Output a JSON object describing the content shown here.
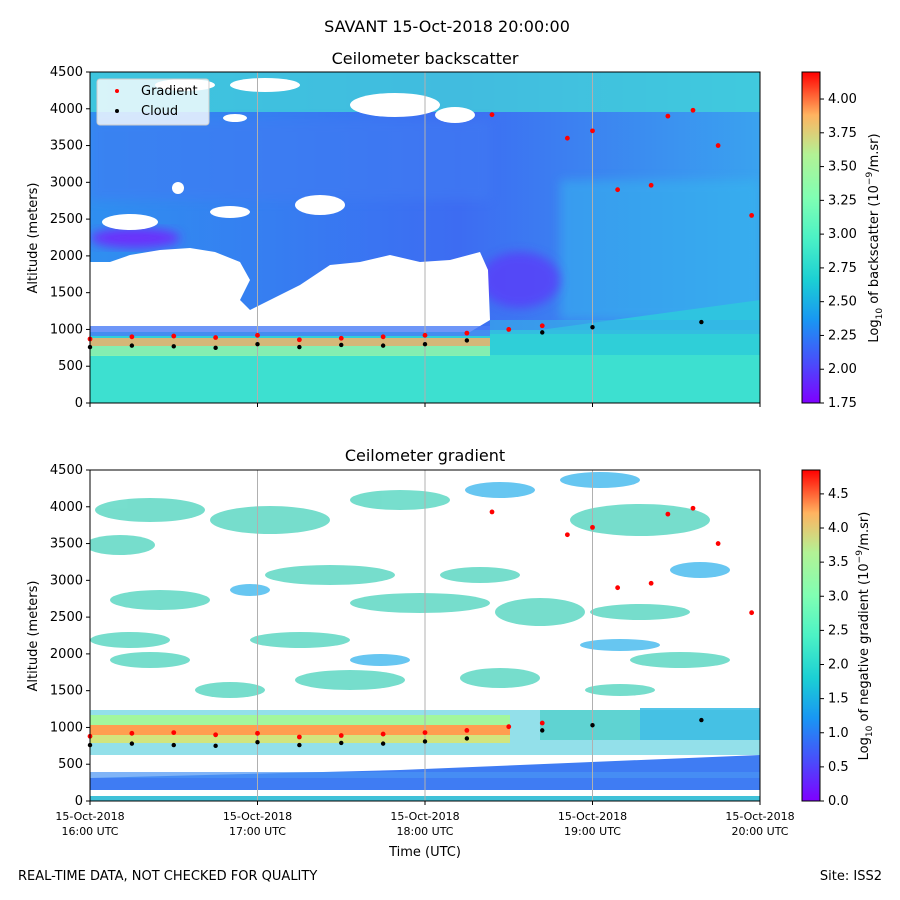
{
  "figure": {
    "suptitle": "SAVANT 15-Oct-2018 20:00:00",
    "footer_left": "REAL-TIME DATA, NOT CHECKED FOR QUALITY",
    "footer_right": "Site: ISS2"
  },
  "chart_data": [
    {
      "type": "heatmap",
      "title": "Ceilometer backscatter",
      "ylabel": "Altitude (meters)",
      "xlabel": "",
      "x_start_hour": 16,
      "x_end_hour": 20,
      "xlim": [
        16,
        20
      ],
      "ylim": [
        0,
        4500
      ],
      "yticks": [
        0,
        500,
        1000,
        1500,
        2000,
        2500,
        3000,
        3500,
        4000,
        4500
      ],
      "xticks": [
        16,
        17,
        18,
        19,
        20
      ],
      "xtick_labels": [],
      "grid": "vertical lines at hours",
      "colormap": "rainbow",
      "colorbar": {
        "label_prefix": "Log",
        "label_sub": "10",
        "label_mid": " of backscatter (10",
        "label_sup": "−9",
        "label_suffix": "/m.sr)",
        "range": [
          1.75,
          4.2
        ],
        "ticks": [
          "1.75",
          "2.00",
          "2.25",
          "2.50",
          "2.75",
          "3.00",
          "3.25",
          "3.50",
          "3.75",
          "4.00"
        ]
      },
      "legend": {
        "position": "top-left",
        "entries": [
          {
            "label": "Gradient",
            "color": "#ff0000"
          },
          {
            "label": "Cloud",
            "color": "#000000"
          }
        ]
      },
      "gradient_series": [
        {
          "t": 16.0,
          "alt": 870
        },
        {
          "t": 16.25,
          "alt": 900
        },
        {
          "t": 16.5,
          "alt": 910
        },
        {
          "t": 16.75,
          "alt": 890
        },
        {
          "t": 17.0,
          "alt": 920
        },
        {
          "t": 17.25,
          "alt": 860
        },
        {
          "t": 17.5,
          "alt": 880
        },
        {
          "t": 17.75,
          "alt": 900
        },
        {
          "t": 18.0,
          "alt": 920
        },
        {
          "t": 18.25,
          "alt": 950
        },
        {
          "t": 18.4,
          "alt": 3920
        },
        {
          "t": 18.5,
          "alt": 1000
        },
        {
          "t": 18.7,
          "alt": 1050
        },
        {
          "t": 18.85,
          "alt": 3600
        },
        {
          "t": 19.0,
          "alt": 3700
        },
        {
          "t": 19.15,
          "alt": 2900
        },
        {
          "t": 19.35,
          "alt": 2960
        },
        {
          "t": 19.45,
          "alt": 3900
        },
        {
          "t": 19.6,
          "alt": 3980
        },
        {
          "t": 19.75,
          "alt": 3500
        },
        {
          "t": 19.95,
          "alt": 2550
        }
      ],
      "cloud_series": [
        {
          "t": 16.0,
          "alt": 760
        },
        {
          "t": 16.25,
          "alt": 780
        },
        {
          "t": 16.5,
          "alt": 770
        },
        {
          "t": 16.75,
          "alt": 750
        },
        {
          "t": 17.0,
          "alt": 800
        },
        {
          "t": 17.25,
          "alt": 760
        },
        {
          "t": 17.5,
          "alt": 790
        },
        {
          "t": 17.75,
          "alt": 780
        },
        {
          "t": 18.0,
          "alt": 800
        },
        {
          "t": 18.25,
          "alt": 850
        },
        {
          "t": 18.7,
          "alt": 960
        },
        {
          "t": 19.0,
          "alt": 1030
        },
        {
          "t": 19.65,
          "alt": 1100
        }
      ]
    },
    {
      "type": "heatmap",
      "title": "Ceilometer gradient",
      "ylabel": "Altitude (meters)",
      "xlabel": "Time (UTC)",
      "x_start_hour": 16,
      "x_end_hour": 20,
      "xlim": [
        16,
        20
      ],
      "ylim": [
        0,
        4500
      ],
      "yticks": [
        0,
        500,
        1000,
        1500,
        2000,
        2500,
        3000,
        3500,
        4000,
        4500
      ],
      "xticks": [
        16,
        17,
        18,
        19,
        20
      ],
      "xtick_labels": [
        [
          "15-Oct-2018",
          "16:00 UTC"
        ],
        [
          "15-Oct-2018",
          "17:00 UTC"
        ],
        [
          "15-Oct-2018",
          "18:00 UTC"
        ],
        [
          "15-Oct-2018",
          "19:00 UTC"
        ],
        [
          "15-Oct-2018",
          "20:00 UTC"
        ]
      ],
      "grid": "vertical lines at hours",
      "colormap": "rainbow",
      "colorbar": {
        "label_prefix": "Log",
        "label_sub": "10",
        "label_mid": " of negative gradient (10",
        "label_sup": "−9",
        "label_suffix": "/m.sr)",
        "range": [
          0.0,
          4.85
        ],
        "ticks": [
          "0.0",
          "0.5",
          "1.0",
          "1.5",
          "2.0",
          "2.5",
          "3.0",
          "3.5",
          "4.0",
          "4.5"
        ]
      },
      "gradient_series": [
        {
          "t": 16.0,
          "alt": 880
        },
        {
          "t": 16.25,
          "alt": 920
        },
        {
          "t": 16.5,
          "alt": 930
        },
        {
          "t": 16.75,
          "alt": 900
        },
        {
          "t": 17.0,
          "alt": 920
        },
        {
          "t": 17.25,
          "alt": 870
        },
        {
          "t": 17.5,
          "alt": 890
        },
        {
          "t": 17.75,
          "alt": 910
        },
        {
          "t": 18.0,
          "alt": 930
        },
        {
          "t": 18.25,
          "alt": 960
        },
        {
          "t": 18.4,
          "alt": 3930
        },
        {
          "t": 18.5,
          "alt": 1010
        },
        {
          "t": 18.7,
          "alt": 1060
        },
        {
          "t": 18.85,
          "alt": 3620
        },
        {
          "t": 19.0,
          "alt": 3720
        },
        {
          "t": 19.15,
          "alt": 2900
        },
        {
          "t": 19.35,
          "alt": 2960
        },
        {
          "t": 19.45,
          "alt": 3900
        },
        {
          "t": 19.6,
          "alt": 3980
        },
        {
          "t": 19.75,
          "alt": 3500
        },
        {
          "t": 19.95,
          "alt": 2560
        }
      ],
      "cloud_series": [
        {
          "t": 16.0,
          "alt": 760
        },
        {
          "t": 16.25,
          "alt": 780
        },
        {
          "t": 16.5,
          "alt": 760
        },
        {
          "t": 16.75,
          "alt": 750
        },
        {
          "t": 17.0,
          "alt": 800
        },
        {
          "t": 17.25,
          "alt": 760
        },
        {
          "t": 17.5,
          "alt": 790
        },
        {
          "t": 17.75,
          "alt": 780
        },
        {
          "t": 18.0,
          "alt": 810
        },
        {
          "t": 18.25,
          "alt": 850
        },
        {
          "t": 18.7,
          "alt": 960
        },
        {
          "t": 19.0,
          "alt": 1030
        },
        {
          "t": 19.65,
          "alt": 1100
        }
      ]
    }
  ]
}
